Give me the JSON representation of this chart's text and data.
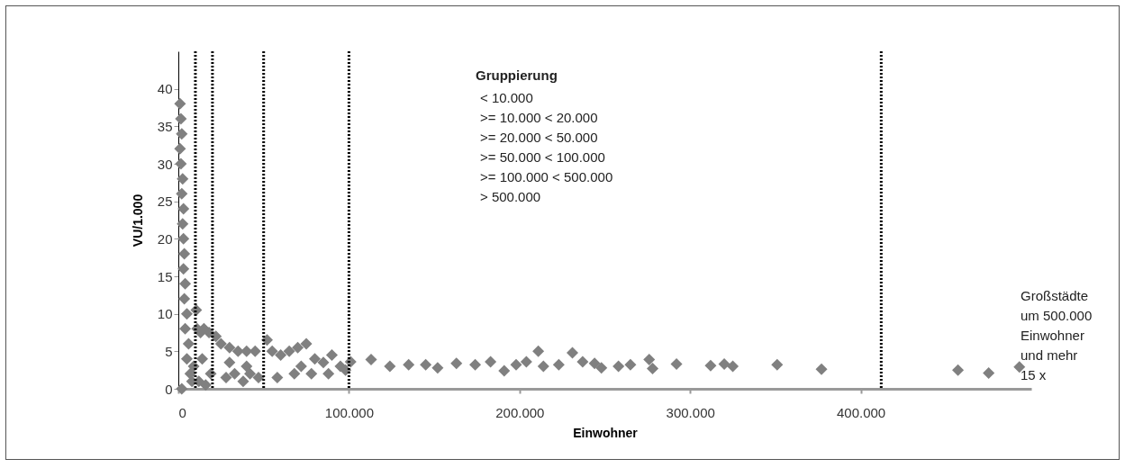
{
  "chart_data": {
    "type": "scatter",
    "xlabel": "Einwohner",
    "ylabel": "VU/1.000",
    "x": [
      1000,
      1500,
      2000,
      1000,
      1500,
      2500,
      2000,
      3000,
      2500,
      3000,
      3500,
      3000,
      4000,
      3500,
      5000,
      4000,
      6000,
      5000,
      7000,
      2000,
      8000,
      9000,
      10500,
      11000,
      13000,
      15000,
      18000,
      12000,
      16000,
      14000,
      19000,
      22000,
      25000,
      30000,
      35000,
      40000,
      45000,
      28000,
      33000,
      38000,
      42000,
      47000,
      30000,
      40000,
      52000,
      55000,
      60000,
      65000,
      70000,
      75000,
      80000,
      85000,
      90000,
      95000,
      58000,
      68000,
      78000,
      88000,
      98000,
      72000,
      101000,
      113000,
      124000,
      135000,
      145000,
      152000,
      163000,
      174000,
      183000,
      191000,
      198000,
      204000,
      211000,
      214000,
      223000,
      231000,
      237000,
      244000,
      248000,
      258000,
      265000,
      276000,
      278000,
      292000,
      312000,
      320000,
      325000,
      351000,
      377000,
      457000,
      475000,
      493000
    ],
    "values": [
      38,
      36,
      34,
      32,
      30,
      28,
      26,
      24,
      22,
      20,
      18,
      16,
      14,
      12,
      10,
      8,
      6,
      4,
      2,
      0,
      1,
      3,
      10.5,
      8,
      7.5,
      8,
      7.5,
      1,
      0.5,
      4,
      2,
      7,
      6,
      5.5,
      5,
      5,
      5,
      1.5,
      2,
      1,
      2,
      1.5,
      3.5,
      3,
      6.5,
      5,
      4.5,
      5,
      5.5,
      6,
      4,
      3.5,
      4.5,
      3,
      1.5,
      2,
      2,
      2,
      2.5,
      3,
      3.6,
      3.9,
      3,
      3.2,
      3.2,
      2.8,
      3.4,
      3.2,
      3.6,
      2.4,
      3.2,
      3.6,
      5,
      3,
      3.2,
      4.8,
      3.6,
      3.4,
      2.8,
      3,
      3.2,
      3.9,
      2.7,
      3.3,
      3.1,
      3.3,
      3,
      3.2,
      2.6,
      2.5,
      2.1,
      2.9
    ],
    "color": "#808080",
    "marker": "diamond",
    "xlim": [
      0,
      500000
    ],
    "ylim": [
      0,
      45
    ],
    "xticks": [
      0,
      {
        "value": 100000,
        "label": "100.000"
      },
      {
        "value": 200000,
        "label": "200.000"
      },
      {
        "value": 300000,
        "label": "300.000"
      },
      {
        "value": 400000,
        "label": "400.000"
      }
    ],
    "yticks": [
      0,
      5,
      10,
      15,
      20,
      25,
      30,
      35,
      40
    ],
    "grid": false,
    "ref_lines": [
      {
        "axis": "x",
        "value": 10000,
        "color": "#000000",
        "line_style": "dotted"
      },
      {
        "axis": "x",
        "value": 20000,
        "color": "#000000",
        "line_style": "dotted"
      },
      {
        "axis": "x",
        "value": 50000,
        "color": "#000000",
        "line_style": "dotted"
      },
      {
        "axis": "x",
        "value": 100000,
        "color": "#000000",
        "line_style": "dotted"
      },
      {
        "axis": "x",
        "value": 412000,
        "color": "#000000",
        "line_style": "dotted"
      }
    ],
    "annotations": [
      "Gruppierung",
      "<      10.000\n>=    10.000   <  20.000\n>=    20.000   <  50.000\n>=    50.000   < 100.000\n>=  100.000   < 500.000\n>    500.000",
      "Großstädte\num 500.000\nEinwohner\nund mehr\n15 x"
    ]
  }
}
